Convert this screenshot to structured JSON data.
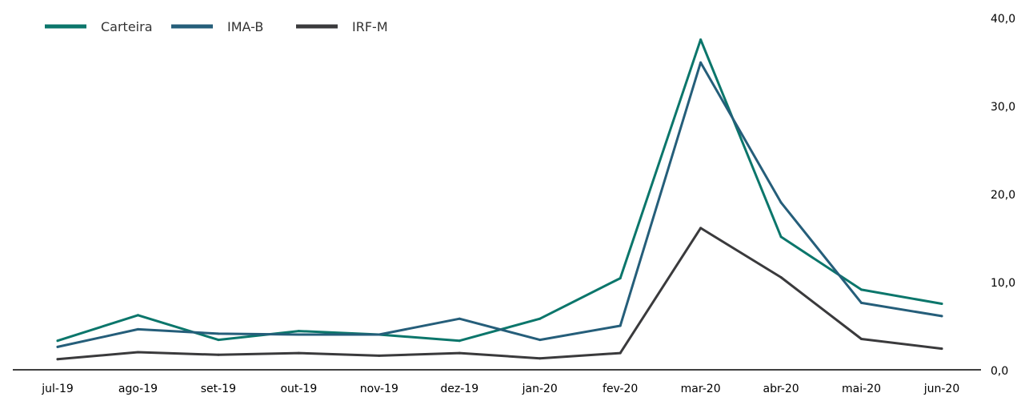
{
  "chart_data": {
    "type": "line",
    "categories": [
      "jul-19",
      "ago-19",
      "set-19",
      "out-19",
      "nov-19",
      "dez-19",
      "jan-20",
      "fev-20",
      "mar-20",
      "abr-20",
      "mai-20",
      "jun-20"
    ],
    "series": [
      {
        "name": "Carteira",
        "color": "#0b766b",
        "values": [
          3.3,
          6.2,
          3.4,
          4.4,
          4.0,
          3.3,
          5.8,
          10.4,
          37.5,
          15.1,
          9.1,
          7.5
        ]
      },
      {
        "name": "IMA-B",
        "color": "#255e7a",
        "values": [
          2.6,
          4.6,
          4.1,
          4.0,
          4.0,
          5.8,
          3.4,
          5.0,
          34.9,
          19.0,
          7.6,
          6.1
        ]
      },
      {
        "name": "IRF-M",
        "color": "#3a3a3c",
        "values": [
          1.2,
          2.0,
          1.7,
          1.9,
          1.6,
          1.9,
          1.3,
          1.9,
          16.1,
          10.5,
          3.5,
          2.4
        ]
      }
    ],
    "yticks": [
      "0,0",
      "10,0",
      "20,0",
      "30,0",
      "40,0"
    ],
    "ylim": [
      0,
      40
    ],
    "grid": false,
    "legend_position": "top-left"
  }
}
